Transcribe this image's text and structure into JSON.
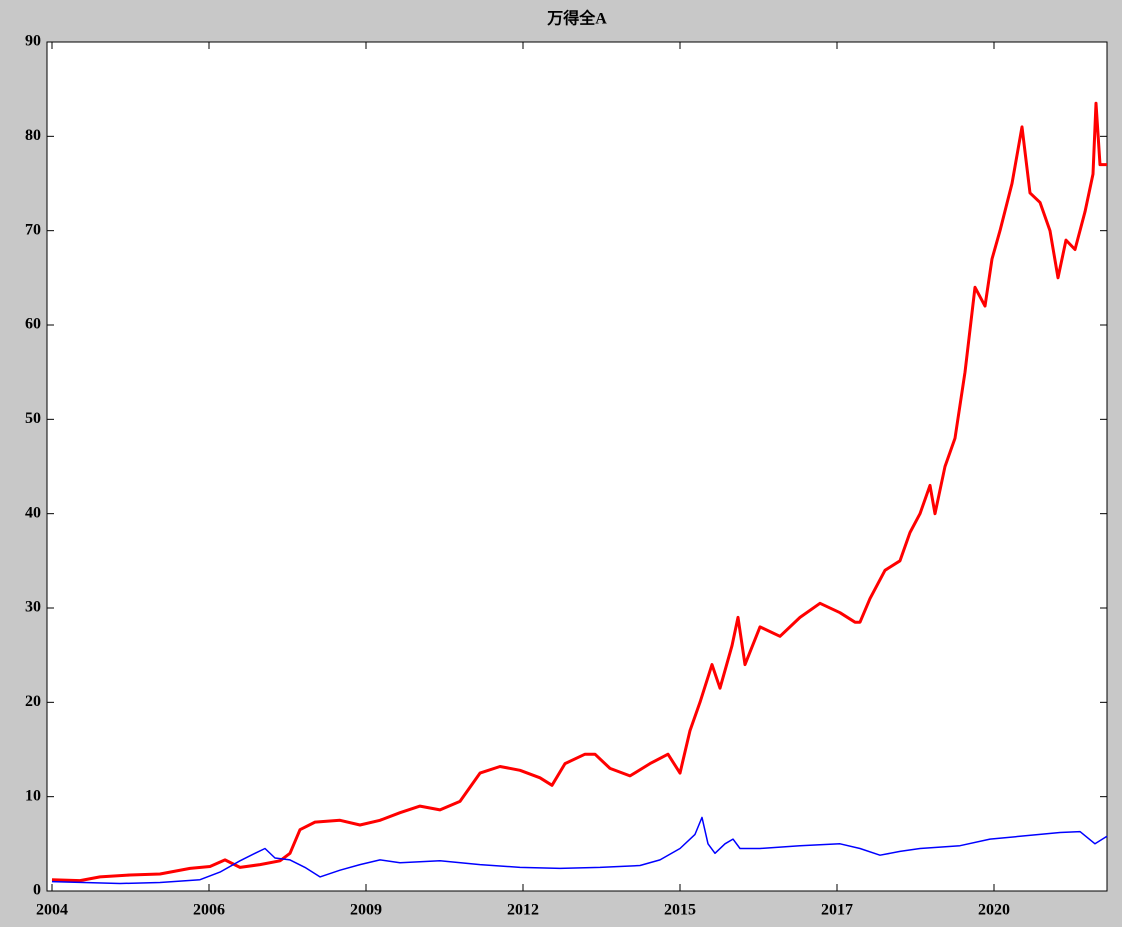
{
  "chart_data": {
    "type": "line",
    "title": "万得全A",
    "xlim": [
      -5,
      1055
    ],
    "xticks": [
      {
        "value": 0,
        "label": "2004"
      },
      {
        "value": 157,
        "label": "2006"
      },
      {
        "value": 314,
        "label": "2009"
      },
      {
        "value": 471,
        "label": "2012"
      },
      {
        "value": 628,
        "label": "2015"
      },
      {
        "value": 785,
        "label": "2017"
      },
      {
        "value": 942,
        "label": "2020"
      }
    ],
    "ylim": [
      0,
      90
    ],
    "yticks": [
      0,
      10,
      20,
      30,
      40,
      50,
      60,
      70,
      80,
      90
    ],
    "grid": false,
    "series": [
      {
        "color": "#ff0000",
        "x": [
          0,
          28,
          48,
          78,
          108,
          138,
          158,
          173,
          188,
          208,
          228,
          238,
          248,
          263,
          288,
          308,
          328,
          348,
          368,
          388,
          408,
          428,
          448,
          468,
          488,
          500,
          513,
          533,
          543,
          558,
          578,
          598,
          616,
          628,
          638,
          648,
          660,
          668,
          680,
          686,
          693,
          708,
          728,
          748,
          768,
          788,
          803,
          808,
          818,
          833,
          848,
          858,
          868,
          878,
          883,
          893,
          903,
          913,
          923,
          933,
          940,
          948,
          960,
          970,
          978,
          988,
          998,
          1006,
          1014,
          1023,
          1033,
          1041,
          1044,
          1048,
          1055
        ],
        "values": [
          1.2,
          1.1,
          1.5,
          1.7,
          1.8,
          2.4,
          2.6,
          3.3,
          2.5,
          2.8,
          3.2,
          4.0,
          6.5,
          7.3,
          7.5,
          7.0,
          7.5,
          8.3,
          9.0,
          8.6,
          9.5,
          12.5,
          13.2,
          12.8,
          12.0,
          11.2,
          13.5,
          14.5,
          14.5,
          13.0,
          12.2,
          13.5,
          14.5,
          12.5,
          17,
          20,
          24,
          21.5,
          26,
          29,
          24,
          28,
          27,
          29,
          30.5,
          29.5,
          28.5,
          28.5,
          31,
          34,
          35,
          38,
          40,
          43,
          40,
          45,
          48,
          55,
          64,
          62,
          67,
          70,
          75,
          81,
          74,
          73,
          70,
          65,
          69,
          68,
          72,
          76,
          83.5,
          77,
          77
        ]
      },
      {
        "color": "#0000ff",
        "x": [
          0,
          68,
          108,
          148,
          168,
          188,
          203,
          213,
          223,
          238,
          253,
          268,
          288,
          308,
          328,
          348,
          388,
          428,
          468,
          508,
          548,
          588,
          608,
          628,
          643,
          650,
          656,
          663,
          673,
          681,
          688,
          708,
          748,
          788,
          808,
          828,
          848,
          868,
          908,
          938,
          968,
          1008,
          1028,
          1043,
          1055
        ],
        "values": [
          1.0,
          0.8,
          0.9,
          1.2,
          2.0,
          3.2,
          4.0,
          4.5,
          3.5,
          3.3,
          2.5,
          1.5,
          2.2,
          2.8,
          3.3,
          3.0,
          3.2,
          2.8,
          2.5,
          2.4,
          2.5,
          2.7,
          3.3,
          4.5,
          6.0,
          7.8,
          5.0,
          4.0,
          5.0,
          5.5,
          4.5,
          4.5,
          4.8,
          5.0,
          4.5,
          3.8,
          4.2,
          4.5,
          4.8,
          5.5,
          5.8,
          6.2,
          6.3,
          5.0,
          5.8
        ]
      }
    ]
  }
}
